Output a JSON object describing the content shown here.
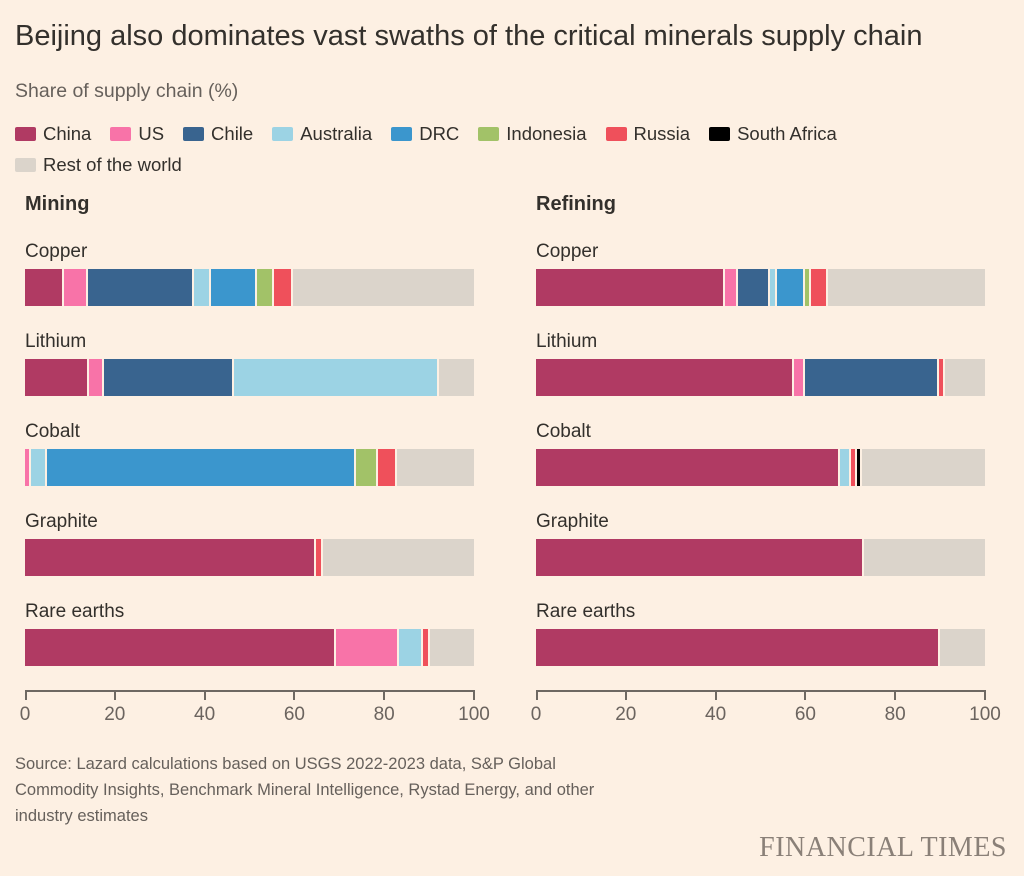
{
  "title": "Beijing also dominates vast swaths of the critical minerals supply chain",
  "subtitle": "Share of supply chain (%)",
  "legend": [
    {
      "label": "China"
    },
    {
      "label": "US"
    },
    {
      "label": "Chile"
    },
    {
      "label": "Australia"
    },
    {
      "label": "DRC"
    },
    {
      "label": "Indonesia"
    },
    {
      "label": "Russia"
    },
    {
      "label": "South Africa"
    },
    {
      "label": "Rest of the world"
    }
  ],
  "colors": {
    "China": "#b03a63",
    "US": "#f873a8",
    "Chile": "#39648f",
    "Australia": "#9cd3e4",
    "DRC": "#3b96cd",
    "Indonesia": "#a2c268",
    "Russia": "#ef505b",
    "South Africa": "#000000",
    "Rest of the world": "#dbd4cb",
    "background": "#fdf0e3",
    "title_text": "#33302c",
    "muted_text": "#66605b",
    "axis": "#6e6862"
  },
  "chart_data": [
    {
      "type": "bar",
      "stacked": true,
      "orientation": "horizontal",
      "title": "Mining",
      "categories": [
        "Copper",
        "Lithium",
        "Cobalt",
        "Graphite",
        "Rare earths"
      ],
      "series": [
        {
          "name": "China",
          "values": [
            8.5,
            14,
            0,
            65,
            70
          ]
        },
        {
          "name": "US",
          "values": [
            5,
            3,
            1,
            0,
            14
          ]
        },
        {
          "name": "Chile",
          "values": [
            24,
            29,
            0,
            0,
            0
          ]
        },
        {
          "name": "Australia",
          "values": [
            3.5,
            46,
            3,
            0,
            5
          ]
        },
        {
          "name": "DRC",
          "values": [
            10,
            0,
            70,
            0,
            0
          ]
        },
        {
          "name": "Indonesia",
          "values": [
            3.5,
            0,
            4.5,
            0,
            0
          ]
        },
        {
          "name": "Russia",
          "values": [
            4,
            0,
            4,
            1,
            1
          ]
        },
        {
          "name": "South Africa",
          "values": [
            0,
            0,
            0,
            0,
            0
          ]
        },
        {
          "name": "Rest of the world",
          "values": [
            41.5,
            8,
            17.5,
            34,
            10
          ]
        }
      ],
      "xlim": [
        0,
        100
      ],
      "x_ticks": [
        0,
        20,
        40,
        60,
        80,
        100
      ],
      "grid": false,
      "legend_position": "top"
    },
    {
      "type": "bar",
      "stacked": true,
      "orientation": "horizontal",
      "title": "Refining",
      "categories": [
        "Copper",
        "Lithium",
        "Cobalt",
        "Graphite",
        "Rare earths"
      ],
      "series": [
        {
          "name": "China",
          "values": [
            43,
            58,
            68.5,
            73,
            90
          ]
        },
        {
          "name": "US",
          "values": [
            2.5,
            2,
            0,
            0,
            0
          ]
        },
        {
          "name": "Chile",
          "values": [
            7,
            30,
            0,
            0,
            0
          ]
        },
        {
          "name": "Australia",
          "values": [
            1,
            0,
            2,
            0,
            0
          ]
        },
        {
          "name": "DRC",
          "values": [
            6,
            0,
            0,
            0,
            0
          ]
        },
        {
          "name": "Indonesia",
          "values": [
            1,
            0,
            0,
            0,
            0
          ]
        },
        {
          "name": "Russia",
          "values": [
            3.5,
            1,
            1,
            0,
            0
          ]
        },
        {
          "name": "South Africa",
          "values": [
            0,
            0,
            0.5,
            0,
            0
          ]
        },
        {
          "name": "Rest of the world",
          "values": [
            36,
            9,
            28,
            27,
            10
          ]
        }
      ],
      "xlim": [
        0,
        100
      ],
      "x_ticks": [
        0,
        20,
        40,
        60,
        80,
        100
      ],
      "grid": false,
      "legend_position": "top"
    }
  ],
  "source_lines": [
    "Source: Lazard calculations based on USGS 2022-2023 data, S&P Global",
    "Commodity Insights, Benchmark Mineral Intelligence, Rystad Energy, and other",
    "industry estimates"
  ],
  "brand": "FINANCIAL TIMES"
}
